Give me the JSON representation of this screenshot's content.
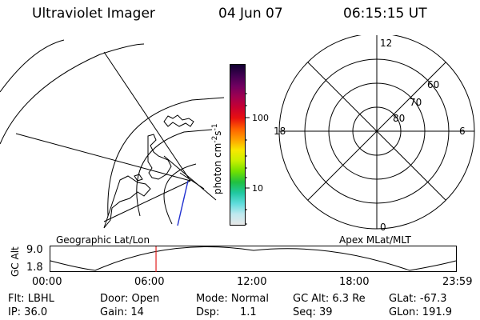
{
  "header": {
    "title": "Ultraviolet Imager",
    "date": "04 Jun 07",
    "time": "06:15:15 UT"
  },
  "colorbar": {
    "unit_label": "photon cm",
    "unit_sup1": "-2",
    "unit_mid": "s",
    "unit_sup2": "-1",
    "tick_100": "100",
    "tick_10": "10",
    "colors": [
      "#e8e8e8",
      "#bfe9ef",
      "#5fdcdc",
      "#20c8a0",
      "#20c040",
      "#70e000",
      "#c8f000",
      "#f8e800",
      "#ffa000",
      "#ff6000",
      "#e81010",
      "#c80030",
      "#a00050",
      "#700060",
      "#400050",
      "#100030"
    ]
  },
  "polar_plot": {
    "label_top": "12",
    "label_bottom": "0",
    "label_left": "18",
    "label_right": "6",
    "lat_60": "60",
    "lat_70": "70",
    "lat_80": "80"
  },
  "timeline": {
    "ylabel": "GC Alt",
    "y_max": "9.0",
    "y_min": "1.8",
    "left_title": "Geographic Lat/Lon",
    "right_title": "Apex MLat/MLT",
    "ticks": [
      "00:00",
      "06:00",
      "12:00",
      "18:00",
      "23:59"
    ],
    "marker_time": "06:15",
    "marker_color": "#e02020"
  },
  "info": {
    "flt": "Flt: LBHL",
    "ip": "IP: 36.0",
    "door": "Door: Open",
    "gain": "Gain: 14",
    "mode": "Mode: Normal",
    "dsp_label": "Dsp:",
    "dsp_value": "1.1",
    "gc_alt": "GC Alt: 6.3 Re",
    "seq": "Seq: 39",
    "glat": "GLat: -67.3",
    "glon": "GLon: 191.9"
  }
}
